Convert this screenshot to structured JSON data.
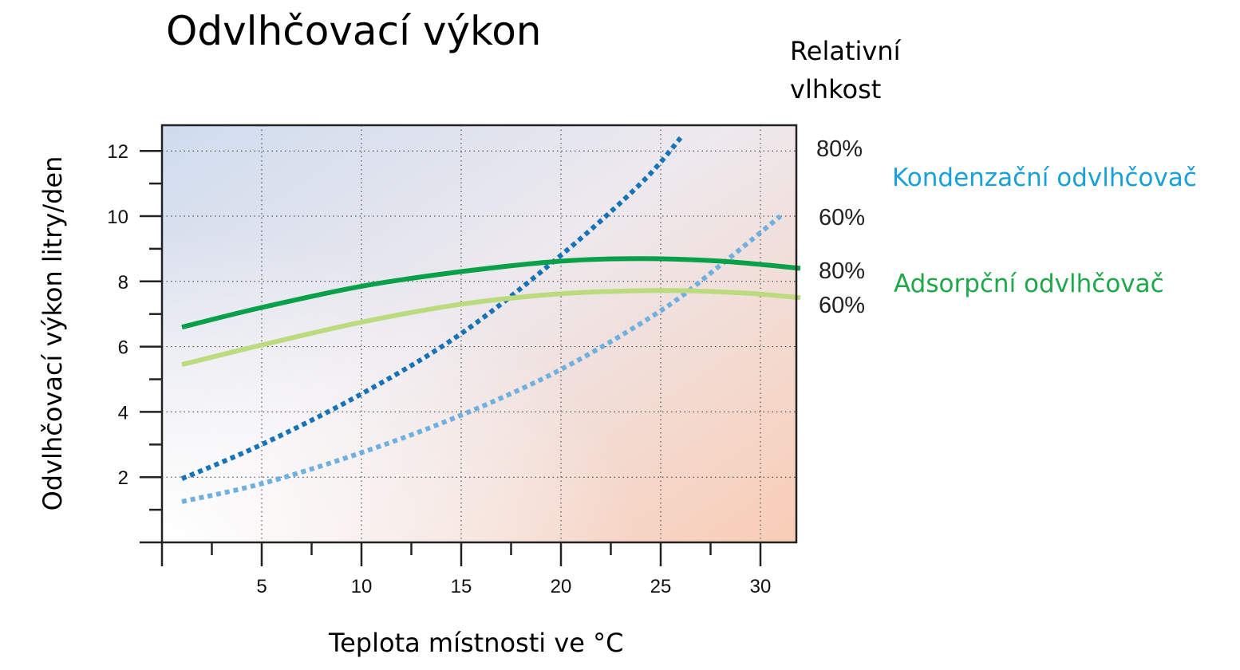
{
  "chart_data": {
    "type": "line",
    "title": "Odvlhčovací výkon",
    "xlabel": "Teplota místnosti ve °C",
    "ylabel": "Odvlhčovací výkon litry/den",
    "xlim": [
      0,
      32
    ],
    "ylim": [
      0,
      12.5
    ],
    "x_ticks": [
      5,
      10,
      15,
      20,
      25,
      30
    ],
    "y_ticks": [
      2,
      4,
      6,
      8,
      10,
      12
    ],
    "grid": true,
    "legend_heading": "Relativní vlhkost",
    "groups": [
      {
        "label": "Kondenzační odvlhčovač",
        "color": "#1aa0d8"
      },
      {
        "label": "Adsorpční odvlhčovač",
        "color": "#1fa84a"
      }
    ],
    "series": [
      {
        "name": "80%",
        "group": 0,
        "color": "#1673b8",
        "style": "dotted",
        "points": [
          [
            1,
            1.95
          ],
          [
            5,
            3.0
          ],
          [
            10,
            4.55
          ],
          [
            15,
            6.4
          ],
          [
            20,
            8.8
          ],
          [
            24,
            11.0
          ],
          [
            26,
            12.4
          ]
        ]
      },
      {
        "name": "60%",
        "group": 0,
        "color": "#6fb0e0",
        "style": "dotted",
        "points": [
          [
            1,
            1.25
          ],
          [
            5,
            1.8
          ],
          [
            10,
            2.75
          ],
          [
            15,
            3.9
          ],
          [
            20,
            5.3
          ],
          [
            25,
            7.1
          ],
          [
            28,
            8.5
          ],
          [
            31,
            10.0
          ]
        ]
      },
      {
        "name": "80%",
        "group": 1,
        "color": "#0aa04a",
        "style": "solid",
        "points": [
          [
            1,
            6.6
          ],
          [
            5,
            7.2
          ],
          [
            10,
            7.85
          ],
          [
            15,
            8.3
          ],
          [
            20,
            8.62
          ],
          [
            24,
            8.7
          ],
          [
            28,
            8.62
          ],
          [
            32,
            8.4
          ]
        ]
      },
      {
        "name": "60%",
        "group": 1,
        "color": "#bcdb7f",
        "style": "solid",
        "points": [
          [
            1,
            5.45
          ],
          [
            5,
            6.05
          ],
          [
            10,
            6.75
          ],
          [
            15,
            7.3
          ],
          [
            20,
            7.62
          ],
          [
            25,
            7.72
          ],
          [
            29,
            7.65
          ],
          [
            32,
            7.5
          ]
        ]
      }
    ]
  }
}
